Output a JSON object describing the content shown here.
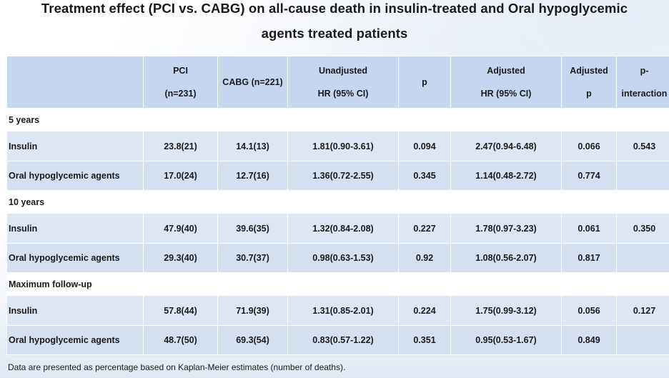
{
  "title": {
    "line1": "Treatment effect (PCI vs. CABG) on all-cause death in insulin-treated and Oral hypoglycemic",
    "line2": "agents treated patients"
  },
  "table": {
    "headers": {
      "col0": "",
      "pci_line1": "PCI",
      "pci_line2": "(n=231)",
      "cabg": "CABG  (n=221)",
      "unadj_line1": "Unadjusted",
      "unadj_line2": "HR (95%  CI)",
      "p": "p",
      "adj_line1": "Adjusted",
      "adj_line2": "HR (95%  CI)",
      "adjp_line1": "Adjusted",
      "adjp_line2": "p",
      "pint_line1": "p-",
      "pint_line2": "interaction"
    },
    "sections": [
      {
        "label": "5 years",
        "rows": [
          {
            "group": "Insulin",
            "pci": "23.8(21)",
            "cabg": "14.1(13)",
            "unadj_hr": "1.81(0.90-3.61)",
            "p": "0.094",
            "adj_hr": "2.47(0.94-6.48)",
            "adj_p": "0.066",
            "p_interaction": "0.543"
          },
          {
            "group": "Oral hypoglycemic agents",
            "pci": "17.0(24)",
            "cabg": "12.7(16)",
            "unadj_hr": "1.36(0.72-2.55)",
            "p": "0.345",
            "adj_hr": "1.14(0.48-2.72)",
            "adj_p": "0.774",
            "p_interaction": ""
          }
        ]
      },
      {
        "label": "10 years",
        "rows": [
          {
            "group": "Insulin",
            "pci": "47.9(40)",
            "cabg": "39.6(35)",
            "unadj_hr": "1.32(0.84-2.08)",
            "p": "0.227",
            "adj_hr": "1.78(0.97-3.23)",
            "adj_p": "0.061",
            "p_interaction": "0.350"
          },
          {
            "group": "Oral hypoglycemic agents",
            "pci": "29.3(40)",
            "cabg": "30.7(37)",
            "unadj_hr": "0.98(0.63-1.53)",
            "p": "0.92",
            "adj_hr": "1.08(0.56-2.07)",
            "adj_p": "0.817",
            "p_interaction": ""
          }
        ]
      },
      {
        "label": "Maximum follow-up",
        "rows": [
          {
            "group": "Insulin",
            "pci": "57.8(44)",
            "cabg": "71.9(39)",
            "unadj_hr": "1.31(0.85-2.01)",
            "p": "0.224",
            "adj_hr": "1.75(0.99-3.12)",
            "adj_p": "0.056",
            "p_interaction": "0.127"
          },
          {
            "group": "Oral hypoglycemic agents",
            "pci": "48.7(50)",
            "cabg": "69.3(54)",
            "unadj_hr": "0.83(0.57-1.22)",
            "p": "0.351",
            "adj_hr": "0.95(0.53-1.67)",
            "adj_p": "0.849",
            "p_interaction": ""
          }
        ]
      }
    ]
  },
  "footnote": "Data are presented as percentage based on Kaplan-Meier estimates (number of deaths).",
  "colors": {
    "header_bg": "#c5d6ee",
    "row_light": "#dde6f3",
    "row_mid": "#d4dff0"
  }
}
